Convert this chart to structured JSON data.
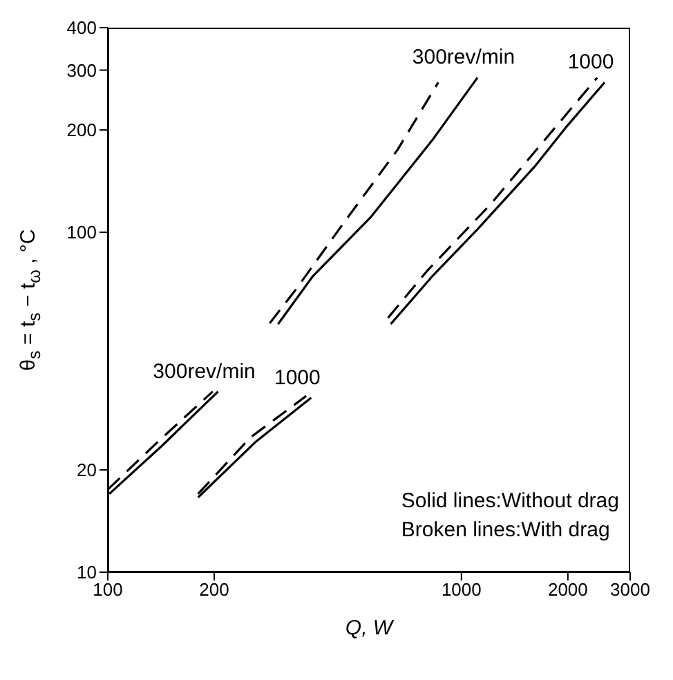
{
  "chart_data": {
    "type": "line",
    "xlabel": "Q,  W",
    "ylabel": "θ$_{s}$ = t$_{s}$ − t$_{ω}$ ,   °C",
    "log": "xy",
    "xlim": [
      100,
      3000
    ],
    "ylim": [
      10,
      400
    ],
    "xticks": [
      100,
      200,
      1000,
      2000,
      3000
    ],
    "yticks": [
      10,
      20,
      100,
      200,
      300,
      400
    ],
    "marker": "none",
    "series": [
      {
        "name": "300rev/min",
        "color": "#000000",
        "line_style": "solid",
        "x": [
          101,
          142,
          205
        ],
        "values": [
          17,
          23.5,
          34
        ]
      },
      {
        "color": "#000000",
        "line_style": "dashed",
        "x": [
          100,
          138,
          198
        ],
        "values": [
          17.5,
          24.1,
          34
        ]
      },
      {
        "name": "1000",
        "color": "#000000",
        "line_style": "solid",
        "x": [
          180,
          261,
          376
        ],
        "values": [
          16.6,
          24.1,
          32.6
        ]
      },
      {
        "color": "#000000",
        "line_style": "dashed",
        "x": [
          180,
          253,
          364
        ],
        "values": [
          17,
          24.9,
          33
        ]
      },
      {
        "name": "300rev/min",
        "color": "#000000",
        "line_style": "solid",
        "x": [
          303,
          379,
          555,
          825,
          1110
        ],
        "values": [
          53.7,
          74,
          111,
          186,
          285
        ]
      },
      {
        "color": "#000000",
        "line_style": "dashed",
        "x": [
          287,
          339,
          466,
          660,
          860
        ],
        "values": [
          54,
          67.5,
          107,
          175,
          276
        ]
      },
      {
        "name": "1000",
        "color": "#000000",
        "line_style": "solid",
        "x": [
          631,
          825,
          1110,
          1610,
          1970,
          2540
        ],
        "values": [
          53.7,
          74,
          102,
          156,
          203,
          276
        ]
      },
      {
        "color": "#000000",
        "line_style": "dashed",
        "x": [
          620,
          800,
          1210,
          1750,
          2420
        ],
        "values": [
          56,
          77,
          121,
          191,
          285
        ]
      }
    ],
    "annotations": [
      "Solid lines:Without drag",
      "Broken lines:With drag"
    ]
  }
}
